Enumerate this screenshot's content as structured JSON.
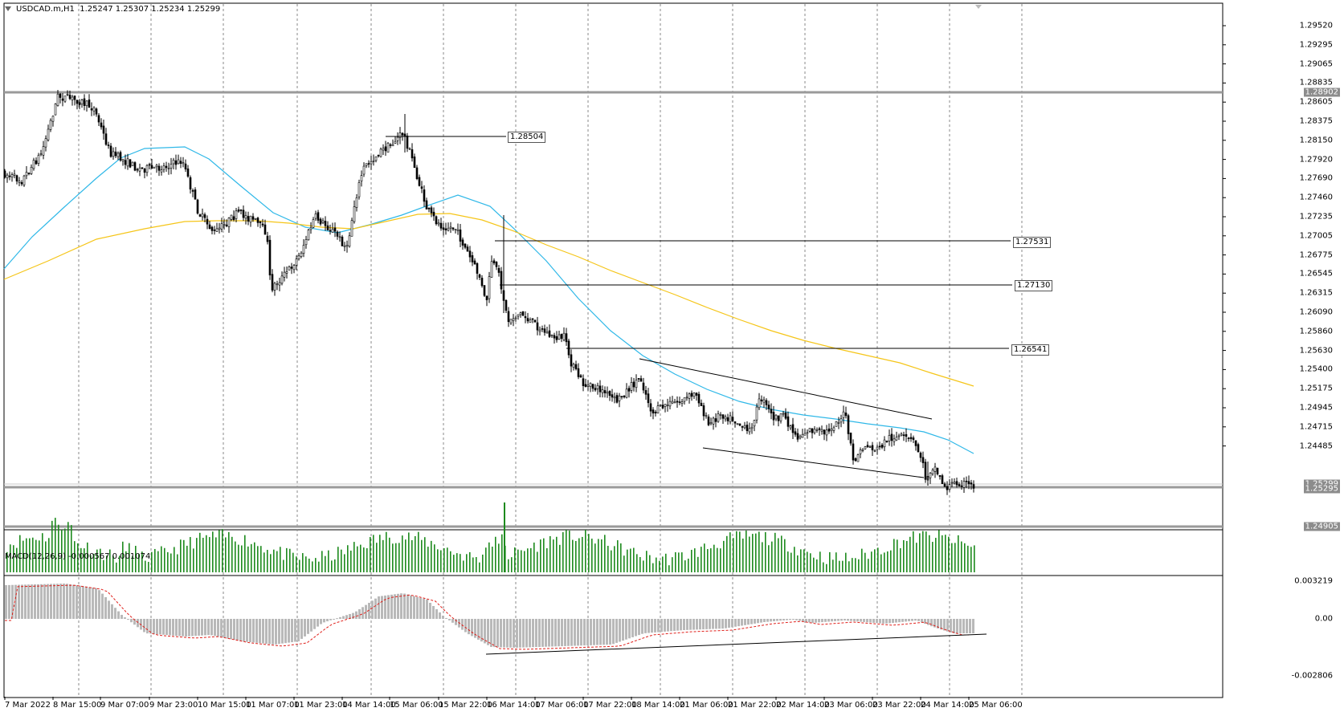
{
  "header": {
    "symbol_info": "USDCAD.m,H1",
    "ohlc": "1.25247 1.25307 1.25234 1.25299"
  },
  "macd_label": "MACD(12,26,9) -0.000567 0.001074",
  "price_axis": [
    "1.29520",
    "1.29295",
    "1.29065",
    "1.28835",
    "1.28605",
    "1.28375",
    "1.28150",
    "1.27920",
    "1.27690",
    "1.27460",
    "1.27235",
    "1.27005",
    "1.26775",
    "1.26545",
    "1.26315",
    "1.26090",
    "1.25860",
    "1.25630",
    "1.25400",
    "1.25175",
    "1.24945",
    "1.24715",
    "1.24485"
  ],
  "price_tags": {
    "upper_grey": "1.28902",
    "current_a": "1.25299",
    "current_b": "1.25295",
    "lower_grey": "1.24905"
  },
  "macd_axis": [
    "0.003219",
    "0.00",
    "-0.002806"
  ],
  "level_labels": [
    "1.28504",
    "1.27531",
    "1.27130",
    "1.26541"
  ],
  "time_axis": [
    "7 Mar 2022",
    "8 Mar 15:00",
    "9 Mar 07:00",
    "9 Mar 23:00",
    "10 Mar 15:00",
    "11 Mar 07:00",
    "11 Mar 23:00",
    "14 Mar 14:00",
    "15 Mar 06:00",
    "15 Mar 22:00",
    "16 Mar 14:00",
    "17 Mar 06:00",
    "17 Mar 22:00",
    "18 Mar 14:00",
    "21 Mar 06:00",
    "21 Mar 22:00",
    "22 Mar 14:00",
    "23 Mar 06:00",
    "23 Mar 22:00",
    "24 Mar 14:00",
    "25 Mar 06:00"
  ],
  "colors": {
    "candle": "#000000",
    "ma_fast": "#2fb8e8",
    "ma_slow": "#f5c518",
    "volume": "#1d8a1d",
    "macd_hist": "#b9b9b9",
    "macd_signal": "#e0201b",
    "grid": "#8a8a8a",
    "hline": "#9a9a9a"
  }
}
